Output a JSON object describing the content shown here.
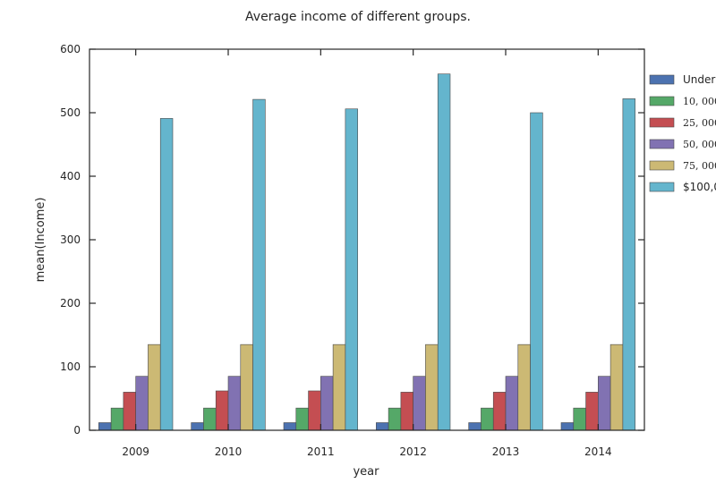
{
  "chart_data": {
    "type": "bar",
    "title": "Average income of different groups.",
    "xlabel": "year",
    "ylabel": "mean(Income)",
    "ylim": [
      0,
      600
    ],
    "yticks": [
      0,
      100,
      200,
      300,
      400,
      500,
      600
    ],
    "categories": [
      "2009",
      "2010",
      "2011",
      "2012",
      "2013",
      "2014"
    ],
    "grid": false,
    "legend_position": "right (clipped)",
    "series": [
      {
        "name": "Under",
        "color": "#4c72b0",
        "values": [
          12,
          12,
          12,
          12,
          12,
          12
        ]
      },
      {
        "name": "10, 000",
        "color": "#55a868",
        "values": [
          35,
          35,
          35,
          35,
          35,
          35
        ]
      },
      {
        "name": "25, 000",
        "color": "#c44e52",
        "values": [
          60,
          62,
          62,
          60,
          60,
          60
        ]
      },
      {
        "name": "50, 000",
        "color": "#8172b2",
        "values": [
          85,
          85,
          85,
          85,
          85,
          85
        ]
      },
      {
        "name": "75, 000",
        "color": "#ccb974",
        "values": [
          135,
          135,
          135,
          135,
          135,
          135
        ]
      },
      {
        "name": "$100,0",
        "color": "#64b5cd",
        "values": [
          491,
          521,
          506,
          561,
          500,
          522
        ]
      }
    ]
  }
}
